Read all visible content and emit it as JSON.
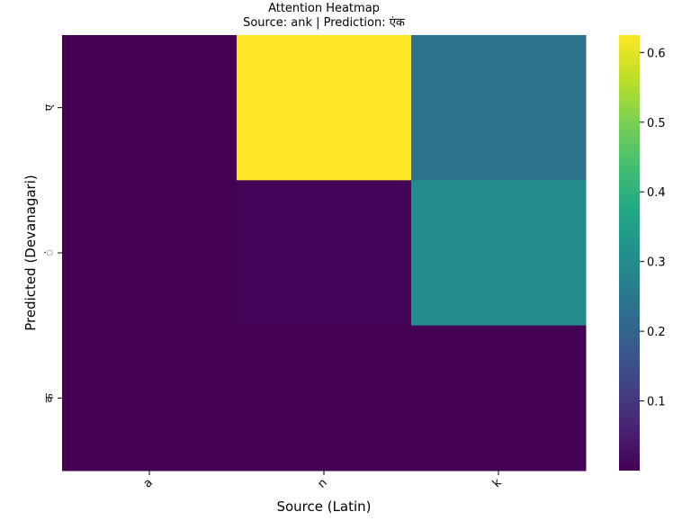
{
  "chart_data": {
    "type": "heatmap",
    "title": "Attention Heatmap",
    "subtitle": "Source: ank | Prediction: एंक",
    "xlabel": "Source (Latin)",
    "ylabel": "Predicted (Devanagari)",
    "x_categories": [
      "a",
      "n",
      "k"
    ],
    "y_categories": [
      "ए",
      "ं",
      "क"
    ],
    "values": [
      [
        0.0,
        0.625,
        0.24
      ],
      [
        0.0,
        0.005,
        0.3
      ],
      [
        0.0,
        0.0,
        0.0
      ]
    ],
    "colormap": "viridis",
    "colorbar": {
      "range": [
        0.0,
        0.625
      ],
      "ticks": [
        0.1,
        0.2,
        0.3,
        0.4,
        0.5,
        0.6
      ],
      "tick_labels": [
        "0.1",
        "0.2",
        "0.3",
        "0.4",
        "0.5",
        "0.6"
      ]
    }
  }
}
